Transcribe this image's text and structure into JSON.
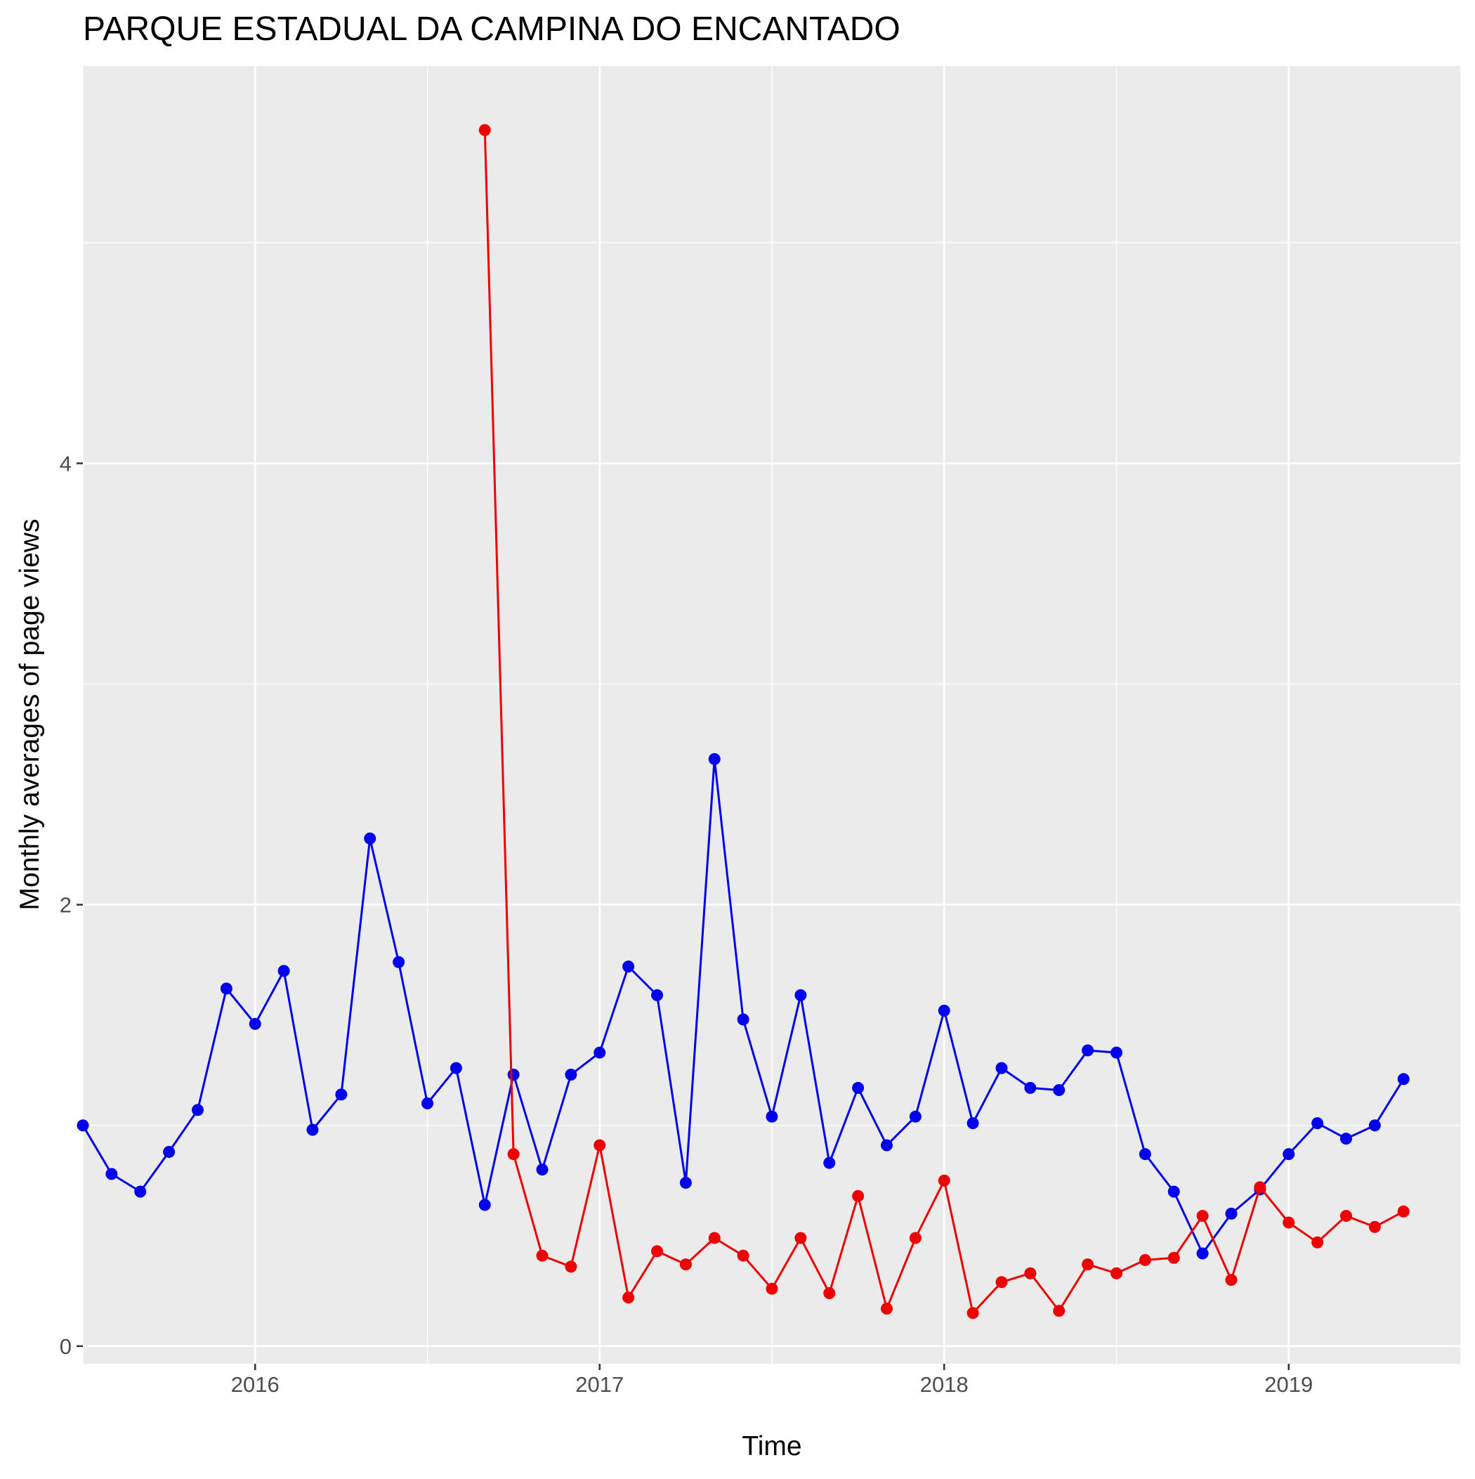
{
  "chart_data": {
    "type": "line",
    "title": "PARQUE ESTADUAL DA CAMPINA DO ENCANTADO",
    "xlabel": "Time",
    "ylabel": "Monthly averages of page views",
    "x_range": [
      2015.5,
      2019.5
    ],
    "ylim": [
      -0.08,
      5.8
    ],
    "x_ticks": [
      {
        "value": 2016,
        "label": "2016"
      },
      {
        "value": 2017,
        "label": "2017"
      },
      {
        "value": 2018,
        "label": "2018"
      },
      {
        "value": 2019,
        "label": "2019"
      }
    ],
    "y_ticks": [
      {
        "value": 0,
        "label": "0"
      },
      {
        "value": 2,
        "label": "2"
      },
      {
        "value": 4,
        "label": "4"
      }
    ],
    "grid": true,
    "legend": "none",
    "series": [
      {
        "color": "#0000ee",
        "points": [
          [
            "2015-07",
            1.0
          ],
          [
            "2015-08",
            0.78
          ],
          [
            "2015-09",
            0.7
          ],
          [
            "2015-10",
            0.88
          ],
          [
            "2015-11",
            1.07
          ],
          [
            "2015-12",
            1.62
          ],
          [
            "2016-01",
            1.46
          ],
          [
            "2016-02",
            1.7
          ],
          [
            "2016-03",
            0.98
          ],
          [
            "2016-04",
            1.14
          ],
          [
            "2016-05",
            2.3
          ],
          [
            "2016-06",
            1.74
          ],
          [
            "2016-07",
            1.1
          ],
          [
            "2016-08",
            1.26
          ],
          [
            "2016-09",
            0.64
          ],
          [
            "2016-10",
            1.23
          ],
          [
            "2016-11",
            0.8
          ],
          [
            "2016-12",
            1.23
          ],
          [
            "2017-01",
            1.33
          ],
          [
            "2017-02",
            1.72
          ],
          [
            "2017-03",
            1.59
          ],
          [
            "2017-04",
            0.74
          ],
          [
            "2017-05",
            2.66
          ],
          [
            "2017-06",
            1.48
          ],
          [
            "2017-07",
            1.04
          ],
          [
            "2017-08",
            1.59
          ],
          [
            "2017-09",
            0.83
          ],
          [
            "2017-10",
            1.17
          ],
          [
            "2017-11",
            0.91
          ],
          [
            "2017-12",
            1.04
          ],
          [
            "2018-01",
            1.52
          ],
          [
            "2018-02",
            1.01
          ],
          [
            "2018-03",
            1.26
          ],
          [
            "2018-04",
            1.17
          ],
          [
            "2018-05",
            1.16
          ],
          [
            "2018-06",
            1.34
          ],
          [
            "2018-07",
            1.33
          ],
          [
            "2018-08",
            0.87
          ],
          [
            "2018-09",
            0.7
          ],
          [
            "2018-10",
            0.42
          ],
          [
            "2018-11",
            0.6
          ],
          [
            "2018-12",
            0.71
          ],
          [
            "2019-01",
            0.87
          ],
          [
            "2019-02",
            1.01
          ],
          [
            "2019-03",
            0.94
          ],
          [
            "2019-04",
            1.0
          ],
          [
            "2019-05",
            1.21
          ]
        ]
      },
      {
        "color": "#ee0000",
        "points": [
          [
            "2016-09",
            5.51
          ],
          [
            "2016-10",
            0.87
          ],
          [
            "2016-11",
            0.41
          ],
          [
            "2016-12",
            0.36
          ],
          [
            "2017-01",
            0.91
          ],
          [
            "2017-02",
            0.22
          ],
          [
            "2017-03",
            0.43
          ],
          [
            "2017-04",
            0.37
          ],
          [
            "2017-05",
            0.49
          ],
          [
            "2017-06",
            0.41
          ],
          [
            "2017-07",
            0.26
          ],
          [
            "2017-08",
            0.49
          ],
          [
            "2017-09",
            0.24
          ],
          [
            "2017-10",
            0.68
          ],
          [
            "2017-11",
            0.17
          ],
          [
            "2017-12",
            0.49
          ],
          [
            "2018-01",
            0.75
          ],
          [
            "2018-02",
            0.15
          ],
          [
            "2018-03",
            0.29
          ],
          [
            "2018-04",
            0.33
          ],
          [
            "2018-05",
            0.16
          ],
          [
            "2018-06",
            0.37
          ],
          [
            "2018-07",
            0.33
          ],
          [
            "2018-08",
            0.39
          ],
          [
            "2018-09",
            0.4
          ],
          [
            "2018-10",
            0.59
          ],
          [
            "2018-11",
            0.3
          ],
          [
            "2018-12",
            0.72
          ],
          [
            "2019-01",
            0.56
          ],
          [
            "2019-02",
            0.47
          ],
          [
            "2019-03",
            0.59
          ],
          [
            "2019-04",
            0.54
          ],
          [
            "2019-05",
            0.61
          ]
        ]
      }
    ]
  }
}
